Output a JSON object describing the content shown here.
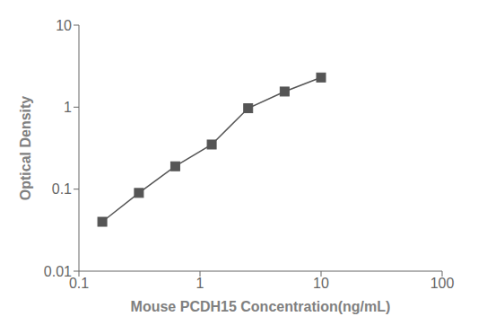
{
  "chart_data": {
    "type": "line",
    "x": [
      0.156,
      0.313,
      0.625,
      1.25,
      2.5,
      5.0,
      10.0
    ],
    "values": [
      0.04,
      0.09,
      0.19,
      0.35,
      0.97,
      1.55,
      2.3
    ],
    "xlabel": "Mouse PCDH15 Concentration(ng/mL)",
    "ylabel": "Optical Density",
    "xlim": [
      0.1,
      100
    ],
    "ylim": [
      0.01,
      10
    ],
    "xticks": [
      0.1,
      1,
      10,
      100
    ],
    "yticks": [
      0.01,
      0.1,
      1,
      10
    ],
    "log": true,
    "grid": false,
    "color": "#555555",
    "marker": "square"
  }
}
